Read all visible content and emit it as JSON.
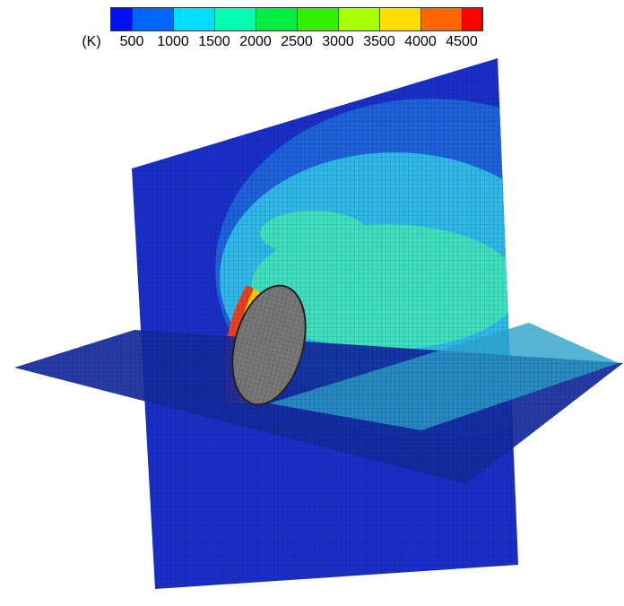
{
  "legend": {
    "unit": "(K)",
    "ticks": [
      "500",
      "1000",
      "1500",
      "2000",
      "2500",
      "3000",
      "3500",
      "4000",
      "4500"
    ],
    "colors": [
      "#0010f0",
      "#0066ff",
      "#00ddff",
      "#00ffb0",
      "#00ee44",
      "#33ee00",
      "#aaff00",
      "#ffdd00",
      "#ff6600",
      "#ff0000"
    ]
  }
}
